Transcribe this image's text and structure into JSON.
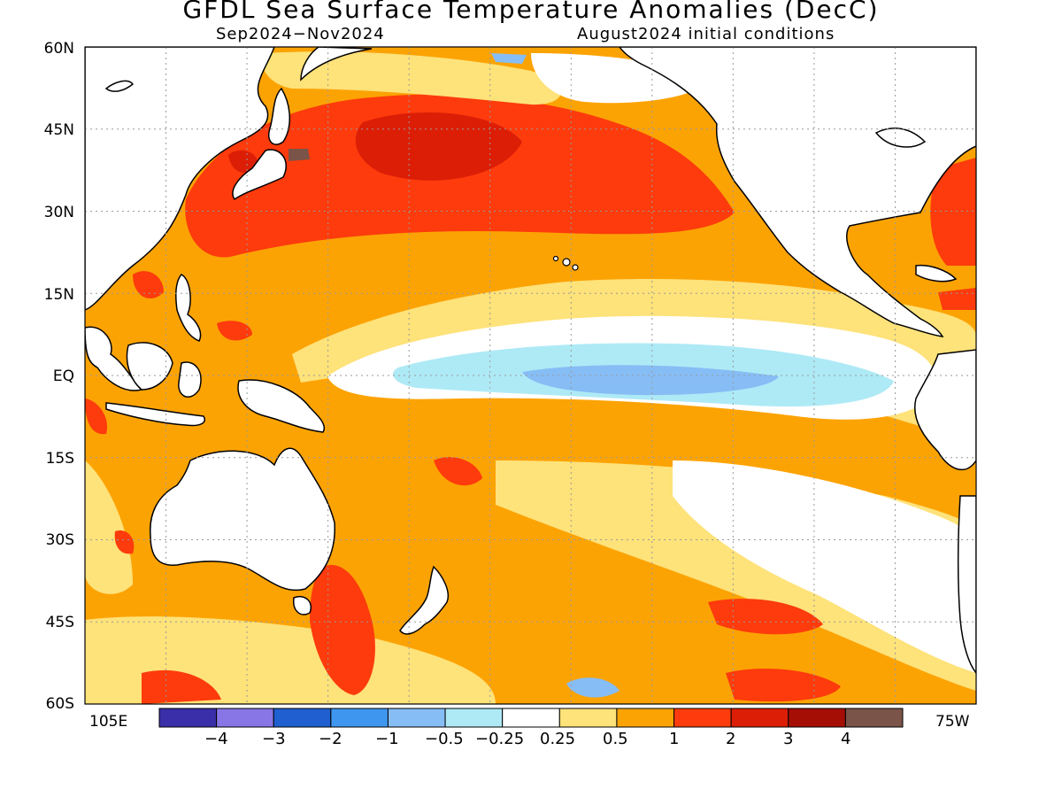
{
  "header": {
    "title": "GFDL Sea Surface Temperature Anomalies (DecC)",
    "period": "Sep2024−Nov2024",
    "init": "August2024 initial conditions"
  },
  "axes": {
    "lat_labels": [
      "60N",
      "45N",
      "30N",
      "15N",
      "EQ",
      "15S",
      "30S",
      "45S",
      "60S"
    ],
    "lon_left": "105E",
    "lon_right": "75W"
  },
  "colorbar": {
    "labels": [
      "−4",
      "−3",
      "−2",
      "−1",
      "−0.5",
      "−0.25",
      "0.25",
      "0.5",
      "1",
      "2",
      "3",
      "4"
    ],
    "colors": [
      "#3a2fa8",
      "#8876e6",
      "#1f5fd0",
      "#3f96ee",
      "#86bdf5",
      "#aeeaf6",
      "#ffffff",
      "#fee27a",
      "#fca304",
      "#fd3b0c",
      "#dc1e07",
      "#a40e05",
      "#7a5448"
    ]
  },
  "map": {
    "land_color": "#ffffff",
    "coast_color": "#000000"
  }
}
